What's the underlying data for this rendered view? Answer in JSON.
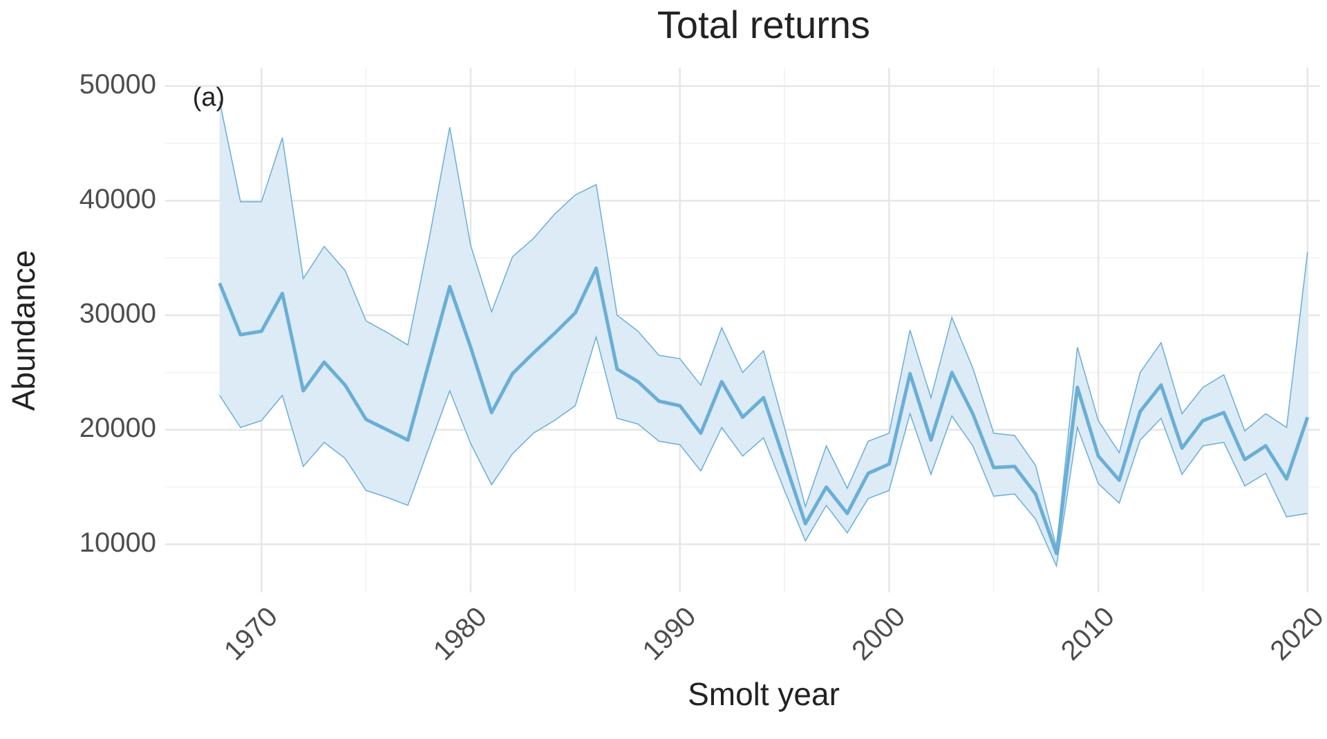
{
  "chart_data": {
    "type": "line",
    "title": "Total returns",
    "x_label": "Smolt year",
    "y_label": "Abundance",
    "annotation": "(a)",
    "color": "#6aaed6",
    "band_color": "#dcebf5",
    "grid": true,
    "x": [
      1968,
      1969,
      1970,
      1971,
      1972,
      1973,
      1974,
      1975,
      1976,
      1977,
      1978,
      1979,
      1980,
      1981,
      1982,
      1983,
      1984,
      1985,
      1986,
      1987,
      1988,
      1989,
      1990,
      1991,
      1992,
      1993,
      1994,
      1995,
      1996,
      1997,
      1998,
      1999,
      2000,
      2001,
      2002,
      2003,
      2004,
      2005,
      2006,
      2007,
      2008,
      2009,
      2010,
      2011,
      2012,
      2013,
      2014,
      2015,
      2016,
      2017,
      2018,
      2019,
      2020
    ],
    "values": [
      32800,
      28300,
      28600,
      31900,
      23400,
      25900,
      23900,
      20900,
      20000,
      19100,
      25800,
      32500,
      27200,
      21500,
      24900,
      26700,
      28400,
      30200,
      34100,
      25300,
      24200,
      22500,
      22100,
      19700,
      24200,
      21100,
      22800,
      17300,
      11800,
      15000,
      12700,
      16200,
      17000,
      24900,
      19100,
      25000,
      21400,
      16700,
      16800,
      14400,
      9200,
      23700,
      17700,
      15600,
      21600,
      23900,
      18400,
      20800,
      21500,
      17400,
      18600,
      15700,
      21100
    ],
    "upper": [
      48700,
      39900,
      39900,
      45500,
      33200,
      36000,
      33900,
      29500,
      28500,
      27400,
      36500,
      46400,
      36100,
      30300,
      35100,
      36700,
      38800,
      40500,
      41400,
      30000,
      28600,
      26500,
      26200,
      23900,
      28900,
      25000,
      26900,
      20200,
      13300,
      18600,
      14900,
      19000,
      19700,
      28700,
      22800,
      29800,
      25400,
      19700,
      19500,
      16900,
      9700,
      27200,
      20800,
      18000,
      25000,
      27600,
      21400,
      23700,
      24800,
      19900,
      21400,
      20200,
      35500
    ],
    "lower": [
      23000,
      20200,
      20800,
      23000,
      16800,
      18900,
      17500,
      14700,
      14100,
      13400,
      18400,
      23400,
      18800,
      15200,
      17900,
      19700,
      20800,
      22100,
      28100,
      21000,
      20500,
      19000,
      18700,
      16400,
      20200,
      17700,
      19300,
      14700,
      10300,
      13400,
      11000,
      14000,
      14700,
      21400,
      16100,
      21200,
      18600,
      14200,
      14400,
      12200,
      8100,
      20200,
      15300,
      13600,
      19100,
      21000,
      16100,
      18600,
      18900,
      15100,
      16200,
      12400,
      12700
    ],
    "xlim": [
      1965.4,
      2020.6
    ],
    "xticks": [
      1970,
      1980,
      1990,
      2000,
      2010,
      2020
    ],
    "ylim": [
      5800,
      51600
    ],
    "yticks": [
      10000,
      20000,
      30000,
      40000,
      50000
    ]
  }
}
